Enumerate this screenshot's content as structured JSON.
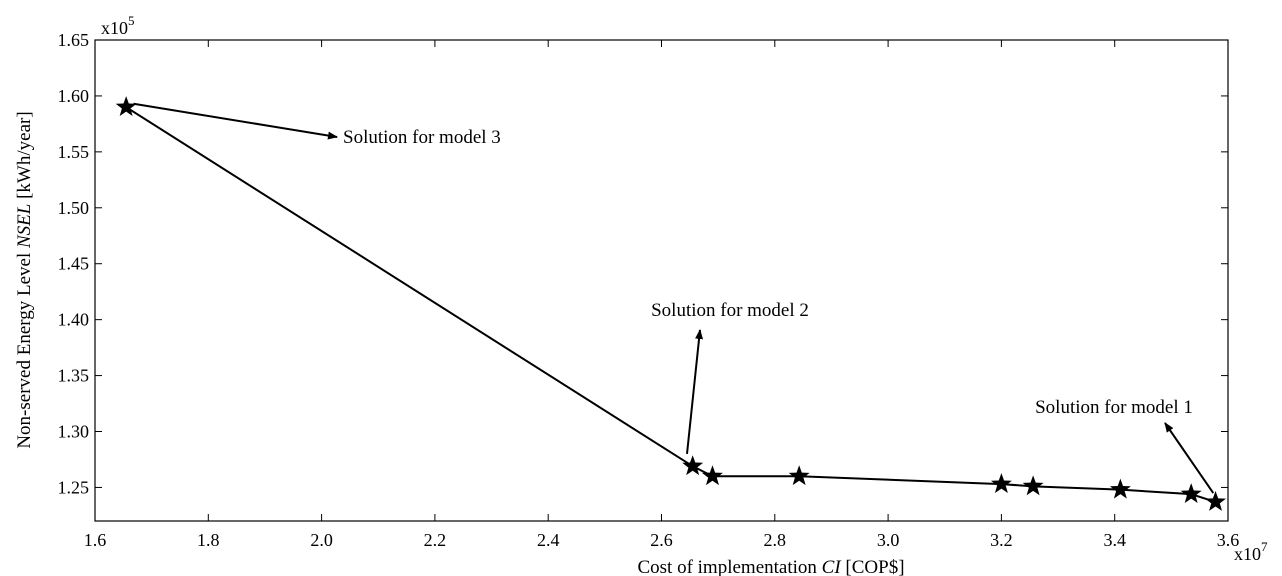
{
  "chart_data": {
    "type": "scatter",
    "xlabel": {
      "prefix": "Cost of implementation ",
      "italic": "CI",
      "suffix": " [COP$]"
    },
    "ylabel": {
      "prefix": "Non-served Energy Level ",
      "italic": "NSEL",
      "suffix": " [kWh/year]"
    },
    "x_multiplier": {
      "base": "x10",
      "exp": "7"
    },
    "y_multiplier": {
      "base": "x10",
      "exp": "5"
    },
    "xlim": [
      1.6,
      3.6
    ],
    "ylim": [
      1.22,
      1.65
    ],
    "x_ticks": [
      "1.6",
      "1.8",
      "2.0",
      "2.2",
      "2.4",
      "2.6",
      "2.8",
      "3.0",
      "3.2",
      "3.4",
      "3.6"
    ],
    "y_ticks": [
      "1.25",
      "1.30",
      "1.35",
      "1.40",
      "1.45",
      "1.50",
      "1.55",
      "1.60",
      "1.65"
    ],
    "grid": false,
    "series": [
      {
        "marker": "star",
        "line": true,
        "points": [
          {
            "x": 1.655,
            "y": 1.59
          },
          {
            "x": 2.655,
            "y": 1.269
          },
          {
            "x": 2.69,
            "y": 1.26
          },
          {
            "x": 2.843,
            "y": 1.26
          },
          {
            "x": 3.2,
            "y": 1.253
          },
          {
            "x": 3.256,
            "y": 1.251
          },
          {
            "x": 3.41,
            "y": 1.248
          },
          {
            "x": 3.535,
            "y": 1.244
          },
          {
            "x": 3.578,
            "y": 1.237
          }
        ]
      }
    ],
    "annotations": [
      {
        "text": "Solution for model 3",
        "point": [
          1.655,
          1.59
        ]
      },
      {
        "text": "Solution for model 2",
        "point": [
          2.655,
          1.269
        ]
      },
      {
        "text": "Solution for model 1",
        "point": [
          3.578,
          1.237
        ]
      }
    ]
  }
}
